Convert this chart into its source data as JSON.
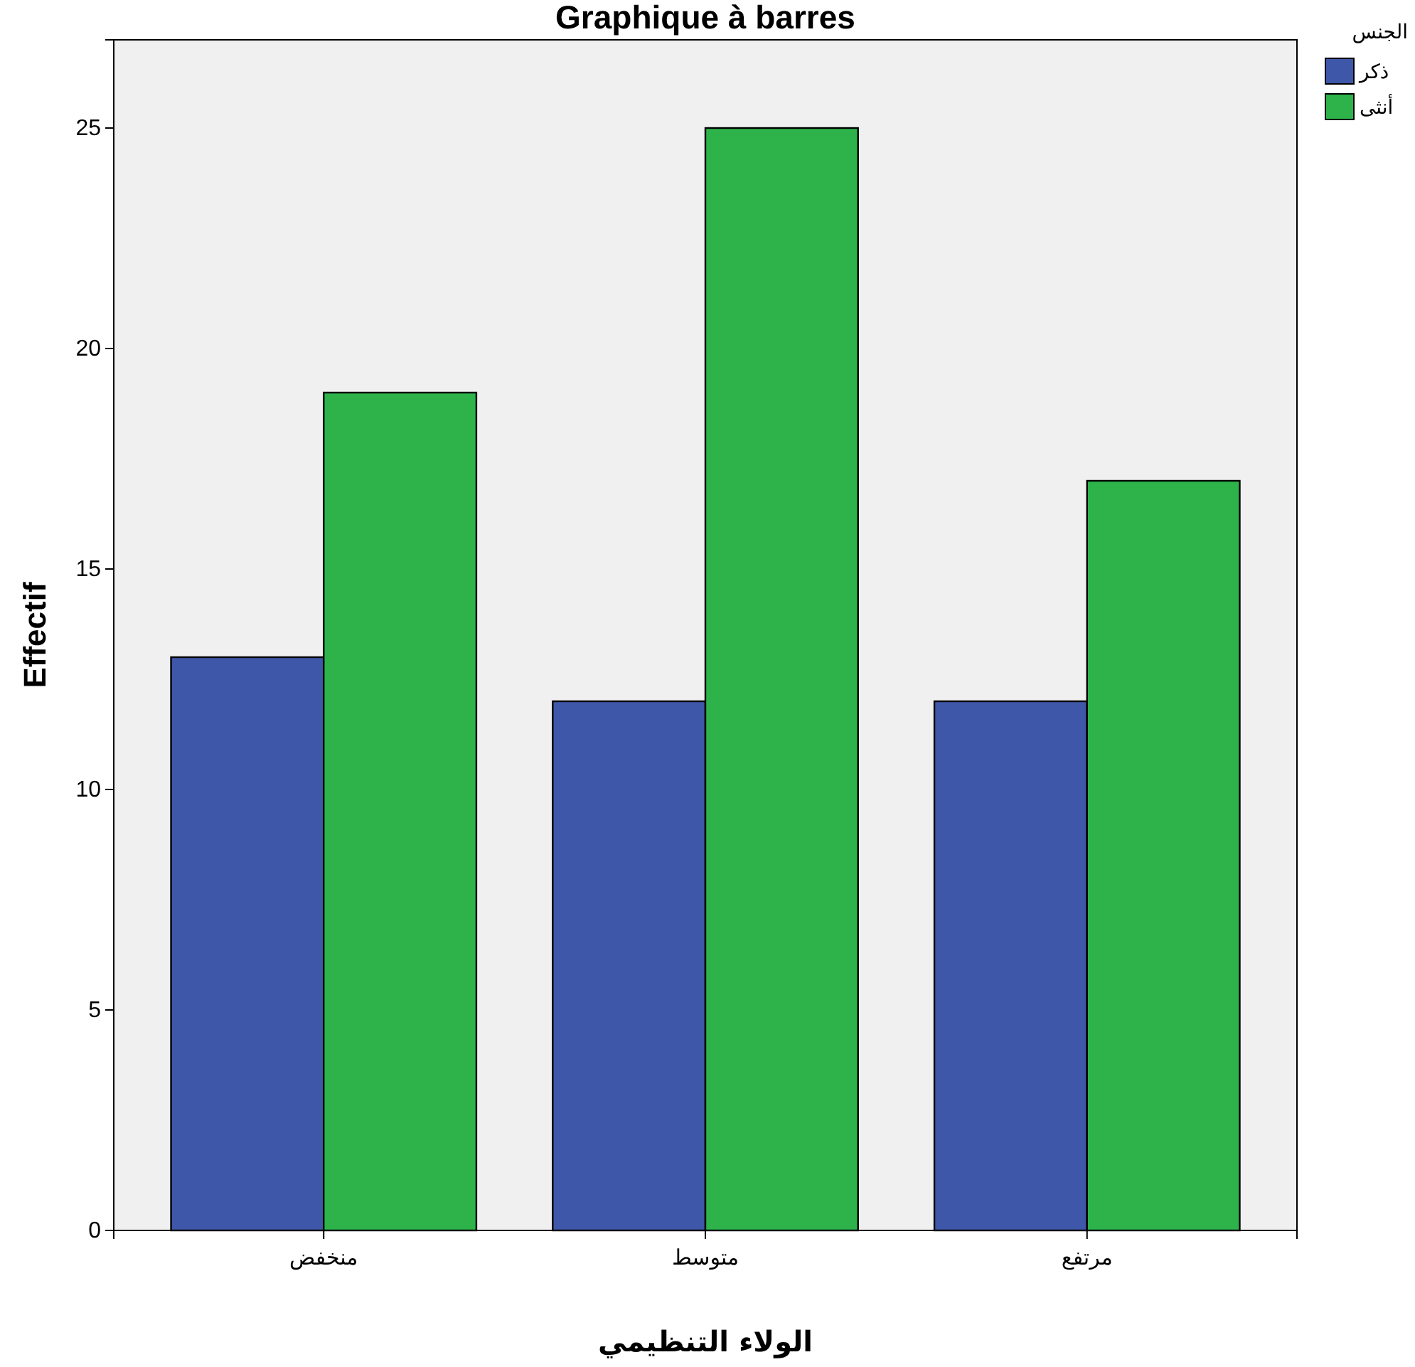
{
  "chart_data": {
    "type": "bar",
    "title": "Graphique à barres",
    "xlabel": "الولاء التنظيمي",
    "ylabel": "Effectif",
    "legend_title": "الجنس",
    "categories": [
      "منخفض",
      "متوسط",
      "مرتفع"
    ],
    "series": [
      {
        "name": "ذكر",
        "color": "#3f57a8",
        "values": [
          13,
          12,
          12
        ]
      },
      {
        "name": "أنثى",
        "color": "#2db34a",
        "values": [
          19,
          25,
          17
        ]
      }
    ],
    "ylim": [
      0,
      27
    ],
    "yticks": [
      0,
      5,
      10,
      15,
      20,
      25
    ],
    "grid": false,
    "legend": "top right"
  }
}
